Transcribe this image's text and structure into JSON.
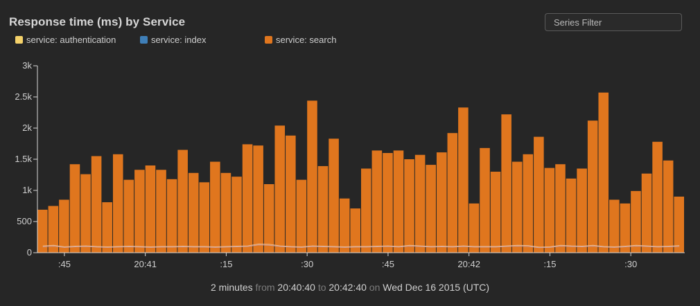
{
  "title": "Response time (ms) by Service",
  "filter": {
    "placeholder": "Series Filter"
  },
  "legend": [
    {
      "label": "service: authentication",
      "color": "#f5d26a"
    },
    {
      "label": "service: index",
      "color": "#3f7fb8"
    },
    {
      "label": "service: search",
      "color": "#e0761e"
    }
  ],
  "footer": {
    "duration": "2 minutes",
    "from_word": "from",
    "from": "20:40:40",
    "to_word": "to",
    "to": "20:42:40",
    "on_word": "on",
    "date": "Wed Dec 16 2015 (UTC)"
  },
  "chart_data": {
    "type": "bar",
    "title": "Response time (ms) by Service",
    "ylim": [
      0,
      3000
    ],
    "yticks": [
      "0",
      "500",
      "1k",
      "1.5k",
      "2k",
      "2.5k",
      "3k"
    ],
    "xtick_labels": [
      ":45",
      "20:41",
      ":15",
      ":30",
      ":45",
      "20:42",
      ":15",
      ":30"
    ],
    "x_start": "20:40:40",
    "x_end": "20:42:40",
    "interval_seconds": 2,
    "grid": false,
    "legend_position": "top-left",
    "series": [
      {
        "name": "service: search",
        "color": "#e0761e",
        "values": [
          690,
          750,
          850,
          1420,
          1260,
          1550,
          810,
          1580,
          1170,
          1330,
          1400,
          1330,
          1180,
          1650,
          1280,
          1130,
          1460,
          1280,
          1220,
          1740,
          1720,
          1100,
          2040,
          1880,
          1170,
          2440,
          1390,
          1830,
          870,
          710,
          1350,
          1640,
          1600,
          1640,
          1500,
          1570,
          1410,
          1610,
          1920,
          2330,
          790,
          1680,
          1300,
          2220,
          1460,
          1580,
          1860,
          1360,
          1420,
          1190,
          1350,
          2120,
          2570,
          850,
          790,
          990,
          1270,
          1780,
          1480,
          900
        ]
      },
      {
        "name": "service: authentication",
        "color": "#f5d26a",
        "values": [
          110,
          120,
          95,
          105,
          110,
          100,
          95,
          100,
          105,
          100,
          95,
          100,
          100,
          105,
          100,
          100,
          95,
          100,
          105,
          110,
          140,
          135,
          110,
          100,
          95,
          110,
          105,
          100,
          95,
          100,
          100,
          105,
          110,
          100,
          120,
          110,
          100,
          105,
          100,
          110,
          100,
          100,
          100,
          110,
          120,
          115,
          90,
          95,
          120,
          110,
          105,
          120,
          100,
          95,
          105,
          120,
          110,
          100,
          105,
          115
        ]
      },
      {
        "name": "service: index",
        "color": "#3f7fb8",
        "values": [
          95,
          105,
          85,
          95,
          100,
          90,
          85,
          90,
          95,
          90,
          85,
          90,
          90,
          95,
          90,
          90,
          85,
          90,
          95,
          100,
          125,
          120,
          100,
          90,
          85,
          100,
          95,
          90,
          85,
          90,
          90,
          95,
          100,
          90,
          105,
          100,
          90,
          95,
          90,
          100,
          90,
          90,
          90,
          100,
          105,
          100,
          80,
          85,
          105,
          100,
          95,
          105,
          90,
          85,
          95,
          105,
          100,
          90,
          95,
          100
        ]
      }
    ]
  }
}
